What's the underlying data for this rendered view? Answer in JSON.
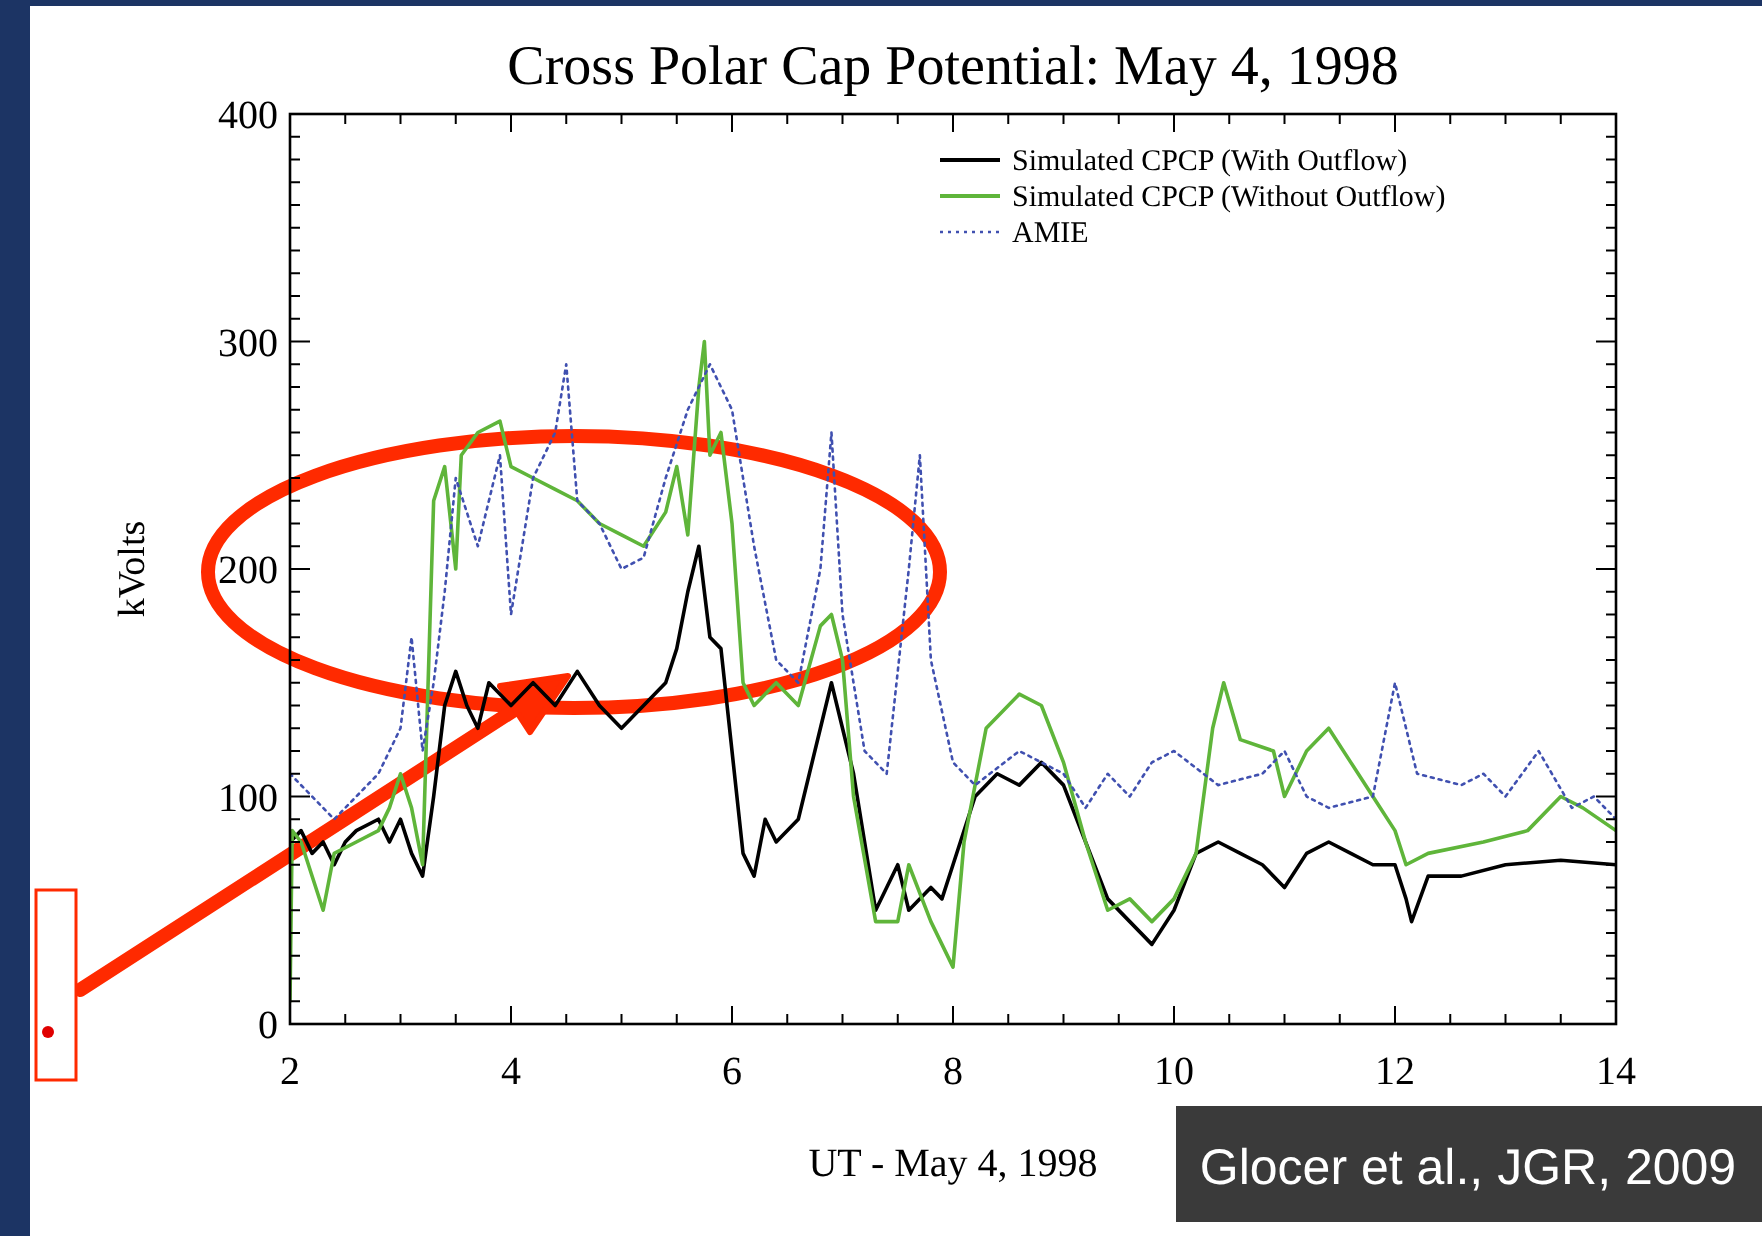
{
  "chart_data": {
    "type": "line",
    "title": "Cross Polar Cap Potential: May 4, 1998",
    "xlabel": "UT - May 4, 1998",
    "ylabel": "kVolts",
    "xlim": [
      2,
      14
    ],
    "ylim": [
      0,
      400
    ],
    "xticks": [
      2,
      4,
      6,
      8,
      10,
      12,
      14
    ],
    "yticks": [
      0,
      100,
      200,
      300,
      400
    ],
    "grid": false,
    "legend": "top right",
    "annotations": [
      "Glocer et al., JGR, 2009"
    ],
    "series": [
      {
        "name": "Simulated CPCP (With Outflow)",
        "color": "#000000",
        "line_style": "solid",
        "x": [
          2.0,
          2.1,
          2.2,
          2.3,
          2.4,
          2.5,
          2.6,
          2.8,
          2.9,
          3.0,
          3.1,
          3.2,
          3.3,
          3.4,
          3.5,
          3.6,
          3.7,
          3.8,
          4.0,
          4.2,
          4.4,
          4.6,
          4.8,
          5.0,
          5.2,
          5.4,
          5.5,
          5.6,
          5.7,
          5.8,
          5.9,
          6.0,
          6.1,
          6.2,
          6.3,
          6.4,
          6.6,
          6.7,
          6.8,
          6.9,
          7.0,
          7.1,
          7.2,
          7.3,
          7.4,
          7.5,
          7.6,
          7.8,
          7.9,
          8.0,
          8.2,
          8.4,
          8.6,
          8.8,
          9.0,
          9.2,
          9.4,
          9.6,
          9.8,
          10.0,
          10.2,
          10.4,
          10.6,
          10.8,
          11.0,
          11.2,
          11.4,
          11.6,
          11.8,
          12.0,
          12.1,
          12.15,
          12.3,
          12.6,
          13.0,
          13.5,
          14.0
        ],
        "values": [
          80,
          85,
          75,
          80,
          70,
          80,
          85,
          90,
          80,
          90,
          75,
          65,
          100,
          140,
          155,
          140,
          130,
          150,
          140,
          150,
          140,
          155,
          140,
          130,
          140,
          150,
          165,
          190,
          210,
          170,
          165,
          120,
          75,
          65,
          90,
          80,
          90,
          110,
          130,
          150,
          130,
          110,
          80,
          50,
          60,
          70,
          50,
          60,
          55,
          70,
          100,
          110,
          105,
          115,
          105,
          80,
          55,
          45,
          35,
          50,
          75,
          80,
          75,
          70,
          60,
          75,
          80,
          75,
          70,
          70,
          55,
          45,
          65,
          65,
          70,
          72,
          70
        ]
      },
      {
        "name": "Simulated CPCP (Without Outflow)",
        "color": "#5fb53a",
        "line_style": "solid",
        "x": [
          2.0,
          2.02,
          2.1,
          2.3,
          2.4,
          2.6,
          2.8,
          2.9,
          3.0,
          3.1,
          3.2,
          3.25,
          3.3,
          3.4,
          3.5,
          3.55,
          3.7,
          3.9,
          4.0,
          4.2,
          4.4,
          4.6,
          4.8,
          5.0,
          5.2,
          5.4,
          5.5,
          5.6,
          5.7,
          5.75,
          5.8,
          5.9,
          6.0,
          6.1,
          6.2,
          6.4,
          6.6,
          6.8,
          6.9,
          7.0,
          7.1,
          7.3,
          7.5,
          7.6,
          7.8,
          8.0,
          8.1,
          8.3,
          8.6,
          8.8,
          9.0,
          9.2,
          9.4,
          9.6,
          9.8,
          10.0,
          10.2,
          10.35,
          10.45,
          10.6,
          10.9,
          11.0,
          11.2,
          11.4,
          11.6,
          11.8,
          12.0,
          12.1,
          12.3,
          12.8,
          13.2,
          13.5,
          13.7,
          14.0
        ],
        "values": [
          10,
          85,
          80,
          50,
          75,
          80,
          85,
          95,
          110,
          95,
          70,
          150,
          230,
          245,
          200,
          250,
          260,
          265,
          245,
          240,
          235,
          230,
          220,
          215,
          210,
          225,
          245,
          215,
          280,
          300,
          250,
          260,
          220,
          150,
          140,
          150,
          140,
          175,
          180,
          160,
          100,
          45,
          45,
          70,
          45,
          25,
          80,
          130,
          145,
          140,
          115,
          80,
          50,
          55,
          45,
          55,
          75,
          130,
          150,
          125,
          120,
          100,
          120,
          130,
          115,
          100,
          85,
          70,
          75,
          80,
          85,
          100,
          95,
          85
        ]
      },
      {
        "name": "AMIE",
        "color": "#4050b0",
        "line_style": "dotted",
        "x": [
          2.0,
          2.2,
          2.4,
          2.6,
          2.8,
          3.0,
          3.1,
          3.2,
          3.3,
          3.4,
          3.5,
          3.7,
          3.9,
          4.0,
          4.2,
          4.4,
          4.5,
          4.6,
          4.8,
          5.0,
          5.2,
          5.4,
          5.6,
          5.8,
          6.0,
          6.2,
          6.4,
          6.6,
          6.8,
          6.9,
          7.0,
          7.2,
          7.4,
          7.6,
          7.7,
          7.8,
          8.0,
          8.2,
          8.6,
          9.0,
          9.2,
          9.4,
          9.6,
          9.8,
          10.0,
          10.4,
          10.8,
          11.0,
          11.2,
          11.4,
          11.8,
          12.0,
          12.2,
          12.6,
          12.8,
          13.0,
          13.3,
          13.6,
          13.8,
          14.0
        ],
        "values": [
          110,
          100,
          90,
          100,
          110,
          130,
          170,
          120,
          150,
          190,
          240,
          210,
          250,
          180,
          240,
          260,
          290,
          230,
          220,
          200,
          205,
          240,
          270,
          290,
          270,
          210,
          160,
          150,
          200,
          260,
          180,
          120,
          110,
          200,
          250,
          160,
          115,
          105,
          120,
          110,
          95,
          110,
          100,
          115,
          120,
          105,
          110,
          120,
          100,
          95,
          100,
          150,
          110,
          105,
          110,
          100,
          120,
          95,
          100,
          90
        ]
      }
    ]
  }
}
